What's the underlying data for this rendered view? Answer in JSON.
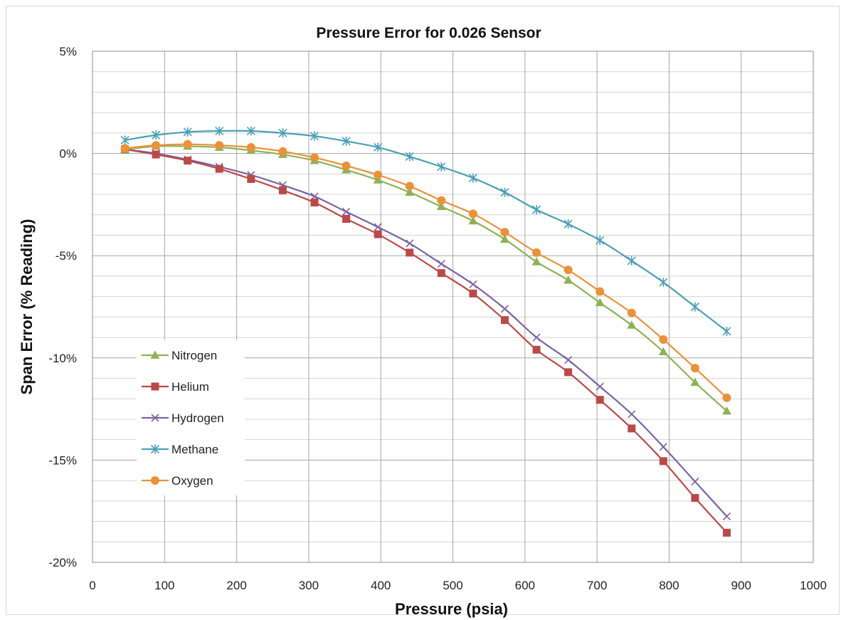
{
  "chart_data": {
    "type": "line",
    "title": "Pressure Error for 0.026 Sensor",
    "xlabel": "Pressure (psia)",
    "ylabel": "Span Error (% Reading)",
    "xlim": [
      0,
      1000
    ],
    "ylim": [
      -20,
      5
    ],
    "x_ticks": [
      0,
      100,
      200,
      300,
      400,
      500,
      600,
      700,
      800,
      900,
      1000
    ],
    "x_tick_labels": [
      "0",
      "100",
      "200",
      "300",
      "400",
      "500",
      "600",
      "700",
      "800",
      "900",
      "1000"
    ],
    "y_ticks": [
      5,
      0,
      -5,
      -10,
      -15,
      -20
    ],
    "y_tick_labels": [
      "5%",
      "0%",
      "-5%",
      "-10%",
      "-15%",
      "-20%"
    ],
    "grid": true,
    "legend_position": "lower-left",
    "x": [
      45,
      88,
      132,
      176,
      220,
      264,
      308,
      352,
      396,
      440,
      484,
      528,
      572,
      616,
      660,
      704,
      748,
      792,
      836,
      880
    ],
    "series": [
      {
        "name": "Nitrogen",
        "color": "#8db255",
        "marker": "triangle",
        "values": [
          0.2,
          0.35,
          0.35,
          0.3,
          0.15,
          -0.05,
          -0.35,
          -0.8,
          -1.3,
          -1.9,
          -2.6,
          -3.3,
          -4.2,
          -5.3,
          -6.2,
          -7.3,
          -8.4,
          -9.7,
          -11.2,
          -12.6
        ]
      },
      {
        "name": "Helium",
        "color": "#b94a48",
        "marker": "square",
        "values": [
          0.2,
          -0.05,
          -0.35,
          -0.75,
          -1.25,
          -1.8,
          -2.4,
          -3.2,
          -3.95,
          -4.85,
          -5.85,
          -6.85,
          -8.15,
          -9.6,
          -10.7,
          -12.05,
          -13.45,
          -15.05,
          -16.85,
          -18.55
        ]
      },
      {
        "name": "Hydrogen",
        "color": "#7b62a3",
        "marker": "x",
        "values": [
          0.2,
          0.0,
          -0.3,
          -0.65,
          -1.05,
          -1.55,
          -2.1,
          -2.85,
          -3.6,
          -4.4,
          -5.4,
          -6.4,
          -7.6,
          -9.0,
          -10.1,
          -11.4,
          -12.75,
          -14.35,
          -16.05,
          -17.75
        ]
      },
      {
        "name": "Methane",
        "color": "#4aa0b5",
        "marker": "asterisk",
        "values": [
          0.65,
          0.9,
          1.05,
          1.1,
          1.1,
          1.0,
          0.85,
          0.6,
          0.3,
          -0.15,
          -0.65,
          -1.2,
          -1.9,
          -2.75,
          -3.45,
          -4.25,
          -5.25,
          -6.3,
          -7.5,
          -8.7
        ]
      },
      {
        "name": "Oxygen",
        "color": "#e8923a",
        "marker": "circle",
        "values": [
          0.25,
          0.4,
          0.45,
          0.4,
          0.3,
          0.1,
          -0.2,
          -0.6,
          -1.05,
          -1.6,
          -2.3,
          -2.95,
          -3.85,
          -4.85,
          -5.7,
          -6.75,
          -7.8,
          -9.1,
          -10.5,
          -11.95
        ]
      }
    ]
  }
}
